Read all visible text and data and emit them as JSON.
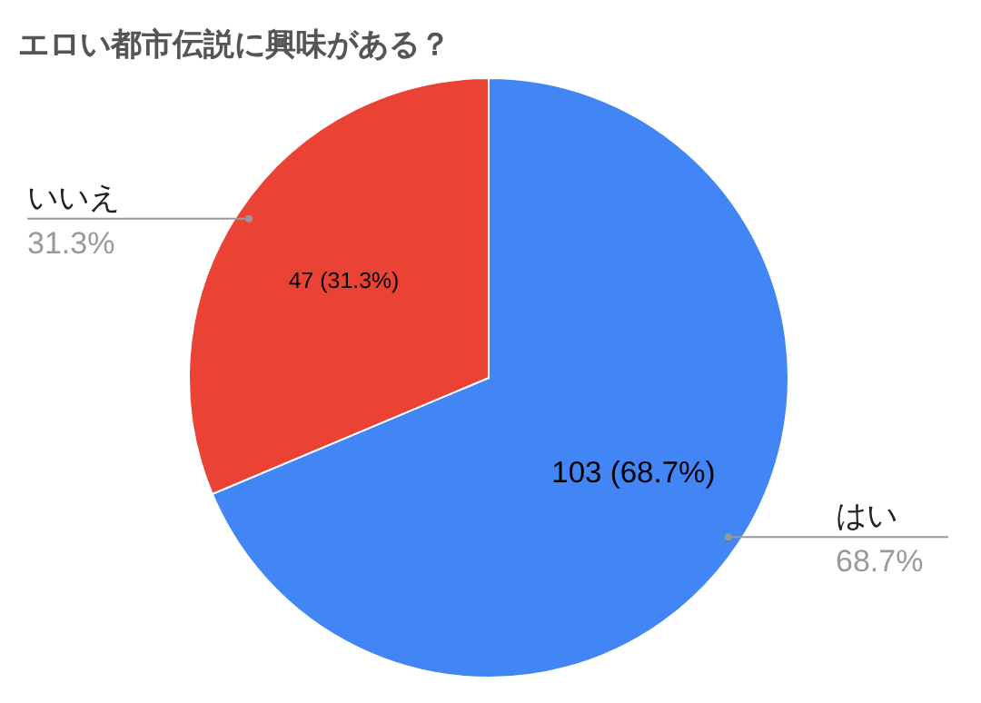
{
  "chart_data": {
    "type": "pie",
    "title": "エロい都市伝説に興味がある？",
    "categories": [
      "はい",
      "いいえ"
    ],
    "values": [
      103,
      47
    ],
    "colors": [
      "#4285f4",
      "#ea4335"
    ],
    "value_labels": [
      "103 (68.7%)",
      "47 (31.3%)"
    ],
    "annotations": [
      "68.7%",
      "31.3%"
    ]
  }
}
